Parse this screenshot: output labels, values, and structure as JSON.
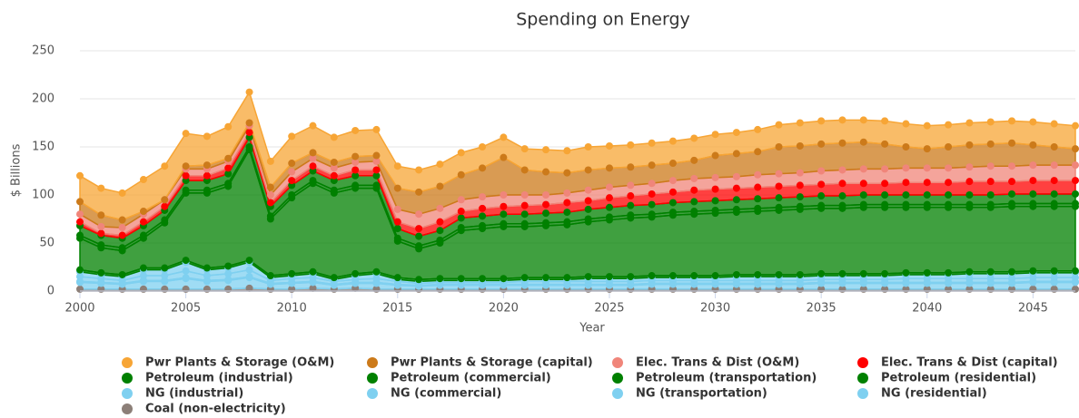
{
  "chart_data": {
    "type": "stacked_area",
    "title": "Spending on Energy",
    "x_label": "Year",
    "y_label": "$ Billions",
    "x": [
      2000,
      2001,
      2002,
      2003,
      2004,
      2005,
      2006,
      2007,
      2008,
      2009,
      2010,
      2011,
      2012,
      2013,
      2014,
      2015,
      2016,
      2017,
      2018,
      2019,
      2020,
      2021,
      2022,
      2023,
      2024,
      2025,
      2026,
      2027,
      2028,
      2029,
      2030,
      2031,
      2032,
      2033,
      2034,
      2035,
      2036,
      2037,
      2038,
      2039,
      2040,
      2041,
      2042,
      2043,
      2044,
      2045,
      2046,
      2047
    ],
    "xlim": [
      2000,
      2047
    ],
    "xticks": [
      2000,
      2005,
      2010,
      2015,
      2020,
      2025,
      2030,
      2035,
      2040,
      2045
    ],
    "ylim": [
      0,
      250
    ],
    "yticks": [
      0,
      50,
      100,
      150,
      200,
      250
    ],
    "grid": true,
    "series": [
      {
        "name": "Pwr Plants & Storage (O&M)",
        "color": "#f7a535",
        "values": [
          27,
          28,
          28,
          33,
          35,
          34,
          30,
          33,
          32,
          27,
          28,
          28,
          26,
          27,
          27,
          23,
          23,
          23,
          23,
          22,
          21,
          22,
          23,
          23,
          24,
          23,
          23,
          23,
          23,
          23,
          22,
          22,
          23,
          23,
          24,
          24,
          24,
          23,
          24,
          24,
          24,
          23,
          23,
          23,
          23,
          24,
          24,
          24
        ]
      },
      {
        "name": "Pwr Plants & Storage (capital)",
        "color": "#cc7a1a",
        "values": [
          13,
          12,
          8,
          3,
          0,
          3,
          4,
          3,
          3,
          8,
          9,
          6,
          6,
          6,
          6,
          22,
          23,
          23,
          26,
          30,
          39,
          26,
          24,
          21,
          21,
          20,
          19,
          19,
          18,
          19,
          23,
          24,
          24,
          28,
          28,
          28,
          28,
          28,
          26,
          22,
          20,
          22,
          23,
          23,
          24,
          21,
          19,
          17
        ]
      },
      {
        "name": "Elec. Trans & Dist (O&M)",
        "color": "#f0857a",
        "values": [
          8,
          7,
          8,
          8,
          7,
          7,
          7,
          7,
          7,
          8,
          9,
          8,
          8,
          8,
          9,
          13,
          15,
          14,
          12,
          12,
          12,
          11,
          10,
          10,
          11,
          11,
          11,
          11,
          12,
          12,
          12,
          12,
          13,
          13,
          13,
          14,
          14,
          15,
          15,
          15,
          15,
          15,
          15,
          16,
          16,
          16,
          16,
          16
        ]
      },
      {
        "name": "Elec. Trans & Dist (capital)",
        "color": "#ff0000",
        "values": [
          4,
          2,
          3,
          4,
          4,
          5,
          5,
          6,
          5,
          4,
          5,
          5,
          5,
          6,
          6,
          7,
          8,
          9,
          7,
          8,
          8,
          9,
          9,
          10,
          9,
          10,
          10,
          11,
          11,
          12,
          12,
          12,
          12,
          12,
          12,
          12,
          13,
          12,
          12,
          13,
          13,
          13,
          14,
          14,
          13,
          14,
          14,
          14
        ]
      },
      {
        "name": "Petroleum (industrial)",
        "color": "#008000",
        "values": [
          10,
          10,
          10,
          10,
          10,
          10,
          10,
          10,
          10,
          10,
          10,
          10,
          10,
          10,
          10,
          10,
          10,
          10,
          10,
          10,
          10,
          10,
          10,
          10,
          10,
          10,
          10,
          10,
          10,
          10,
          10,
          10,
          10,
          10,
          10,
          10,
          10,
          10,
          10,
          10,
          10,
          10,
          10,
          10,
          10,
          10,
          10,
          10
        ]
      },
      {
        "name": "Petroleum (commercial)",
        "color": "#008000",
        "values": [
          3,
          3,
          3,
          3,
          3,
          3,
          3,
          3,
          3,
          3,
          3,
          3,
          3,
          3,
          3,
          3,
          3,
          3,
          3,
          3,
          3,
          3,
          3,
          3,
          3,
          3,
          3,
          3,
          3,
          3,
          3,
          3,
          3,
          3,
          3,
          3,
          3,
          3,
          3,
          3,
          3,
          3,
          3,
          3,
          3,
          3,
          3,
          3
        ]
      },
      {
        "name": "Petroleum (transportation)",
        "color": "#008000",
        "values": [
          33,
          26,
          25,
          31,
          47,
          70,
          78,
          83,
          115,
          59,
          79,
          92,
          88,
          89,
          87,
          38,
          32,
          37,
          50,
          52,
          54,
          53,
          54,
          55,
          57,
          59,
          61,
          61,
          63,
          64,
          65,
          65,
          66,
          67,
          68,
          68,
          68,
          69,
          69,
          68,
          68,
          68,
          67,
          67,
          68,
          67,
          67,
          67
        ]
      },
      {
        "name": "Petroleum (residential)",
        "color": "#008000",
        "values": [
          2,
          2,
          2,
          2,
          2,
          2,
          2,
          2,
          2,
          2,
          2,
          2,
          2,
          2,
          2,
          2,
          2,
          2,
          2,
          2,
          2,
          2,
          2,
          2,
          2,
          2,
          2,
          2,
          2,
          2,
          2,
          2,
          2,
          2,
          2,
          2,
          2,
          2,
          2,
          2,
          2,
          2,
          2,
          2,
          2,
          2,
          2,
          2
        ]
      },
      {
        "name": "NG (industrial)",
        "color": "#7fd0f0",
        "values": [
          5,
          4,
          4,
          6,
          6,
          9,
          6,
          6,
          8,
          3,
          3,
          4,
          2,
          4,
          5,
          2,
          2,
          2,
          2,
          2,
          2,
          2,
          2,
          2,
          3,
          3,
          3,
          3,
          3,
          3,
          3,
          4,
          4,
          4,
          4,
          4,
          4,
          4,
          4,
          4,
          4,
          4,
          5,
          5,
          5,
          5,
          5,
          5
        ]
      },
      {
        "name": "NG (commercial)",
        "color": "#7fd0f0",
        "values": [
          5,
          4,
          3,
          5,
          5,
          7,
          5,
          6,
          7,
          3,
          4,
          4,
          3,
          3,
          4,
          3,
          2,
          2,
          2,
          2,
          2,
          3,
          3,
          3,
          3,
          3,
          3,
          3,
          3,
          3,
          3,
          3,
          3,
          3,
          3,
          3,
          3,
          3,
          3,
          4,
          4,
          4,
          4,
          4,
          4,
          4,
          4,
          4
        ]
      },
      {
        "name": "NG (transportation)",
        "color": "#7fd0f0",
        "values": [
          1,
          1,
          1,
          1,
          1,
          1,
          1,
          1,
          1,
          1,
          1,
          1,
          1,
          1,
          1,
          1,
          1,
          1,
          1,
          1,
          1,
          1,
          1,
          1,
          1,
          1,
          1,
          1,
          1,
          1,
          1,
          1,
          1,
          1,
          1,
          1,
          1,
          1,
          1,
          1,
          1,
          1,
          1,
          1,
          1,
          1,
          1,
          1
        ]
      },
      {
        "name": "NG (residential)",
        "color": "#7fd0f0",
        "values": [
          7,
          6,
          5,
          8,
          8,
          11,
          8,
          9,
          11,
          5,
          6,
          6,
          4,
          5,
          6,
          4,
          3,
          4,
          4,
          4,
          4,
          4,
          4,
          4,
          4,
          4,
          4,
          5,
          5,
          5,
          5,
          5,
          5,
          5,
          5,
          6,
          6,
          6,
          6,
          6,
          6,
          6,
          6,
          6,
          6,
          7,
          7,
          7
        ]
      },
      {
        "name": "Coal (non-electricity)",
        "color": "#8c7f78",
        "values": [
          2,
          2,
          2,
          2,
          2,
          2,
          2,
          2,
          3,
          2,
          2,
          3,
          2,
          3,
          2,
          2,
          2,
          2,
          2,
          2,
          2,
          2,
          2,
          2,
          2,
          2,
          2,
          2,
          2,
          2,
          2,
          2,
          2,
          2,
          2,
          2,
          2,
          2,
          2,
          2,
          2,
          2,
          2,
          2,
          2,
          2,
          2,
          2
        ]
      }
    ]
  }
}
